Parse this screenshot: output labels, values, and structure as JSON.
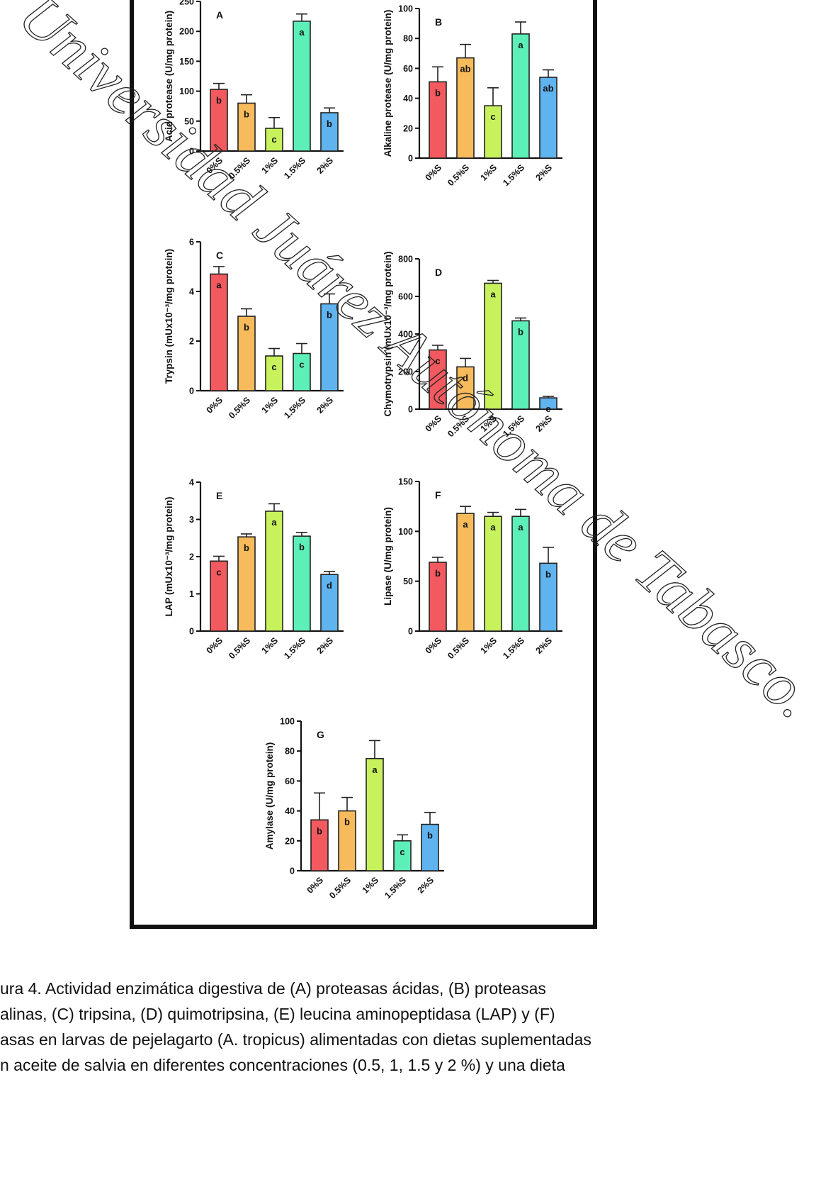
{
  "caption": {
    "lines": [
      "ura 4. Actividad enzimática digestiva de (A) proteasas ácidas, (B) proteasas",
      "alinas, (C) tripsina, (D) quimotripsina, (E) leucina aminopeptidasa (LAP) y (F)",
      "asas en larvas de pejelagarto (A. tropicus) alimentadas con dietas suplementadas",
      "n aceite de salvia en diferentes concentraciones (0.5, 1, 1.5 y 2 %) y una dieta"
    ]
  },
  "watermark": {
    "text": "Universidad Juárez Autónoma de Tabasco."
  },
  "colors": [
    "#f25a5f",
    "#f7bb5c",
    "#c8f25c",
    "#5cf0b8",
    "#5fb4f0"
  ],
  "chart_data": [
    {
      "type": "bar",
      "panel": "A",
      "ylabel": "Acid protease (U/mg protein)",
      "categories": [
        "0%S",
        "0.5%S",
        "1%S",
        "1.5%S",
        "2%S"
      ],
      "values": [
        103,
        80,
        38,
        217,
        64
      ],
      "errors": [
        10,
        14,
        18,
        12,
        8
      ],
      "letters": [
        "b",
        "b",
        "c",
        "a",
        "b"
      ],
      "ylim": [
        0,
        250
      ],
      "yticks": [
        0,
        50,
        100,
        150,
        200,
        250
      ]
    },
    {
      "type": "bar",
      "panel": "B",
      "ylabel": "Alkaline protease (U/mg protein)",
      "categories": [
        "0%S",
        "0.5%S",
        "1%S",
        "1.5%S",
        "2%S"
      ],
      "values": [
        51,
        67,
        35,
        83,
        54
      ],
      "errors": [
        10,
        9,
        12,
        8,
        5
      ],
      "letters": [
        "b",
        "ab",
        "c",
        "a",
        "ab"
      ],
      "ylim": [
        0,
        100
      ],
      "yticks": [
        0,
        20,
        40,
        60,
        80,
        100
      ]
    },
    {
      "type": "bar",
      "panel": "C",
      "ylabel": "Trypsin (mUx10⁻³/mg protein)",
      "categories": [
        "0%S",
        "0.5%S",
        "1%S",
        "1.5%S",
        "2%S"
      ],
      "values": [
        4.7,
        3.0,
        1.4,
        1.5,
        3.5
      ],
      "errors": [
        0.3,
        0.3,
        0.3,
        0.4,
        0.4
      ],
      "letters": [
        "a",
        "b",
        "c",
        "c",
        "b"
      ],
      "ylim": [
        0,
        6
      ],
      "yticks": [
        0,
        2,
        4,
        6
      ]
    },
    {
      "type": "bar",
      "panel": "D",
      "ylabel": "Chymotrypsin (mUx10⁻³/mg protein)",
      "categories": [
        "0%S",
        "0.5%S",
        "1%S",
        "1.5%S",
        "2%S"
      ],
      "values": [
        315,
        225,
        670,
        470,
        60
      ],
      "errors": [
        25,
        45,
        15,
        15,
        8
      ],
      "letters": [
        "c",
        "d",
        "a",
        "b",
        "e"
      ],
      "ylim": [
        0,
        800
      ],
      "yticks": [
        0,
        200,
        400,
        600,
        800
      ]
    },
    {
      "type": "bar",
      "panel": "E",
      "ylabel": "LAP (mUx10⁻³/mg protein)",
      "categories": [
        "0%S",
        "0.5%S",
        "1%S",
        "1.5%S",
        "2%S"
      ],
      "values": [
        1.88,
        2.53,
        3.22,
        2.55,
        1.52
      ],
      "errors": [
        0.13,
        0.08,
        0.2,
        0.1,
        0.08
      ],
      "letters": [
        "c",
        "b",
        "a",
        "b",
        "d"
      ],
      "ylim": [
        0,
        4
      ],
      "yticks": [
        0,
        1,
        2,
        3,
        4
      ]
    },
    {
      "type": "bar",
      "panel": "F",
      "ylabel": "Lipase (U/mg protein)",
      "categories": [
        "0%S",
        "0.5%S",
        "1%S",
        "1.5%S",
        "2%S"
      ],
      "values": [
        69,
        118,
        115,
        115,
        68
      ],
      "errors": [
        5,
        7,
        4,
        7,
        16
      ],
      "letters": [
        "b",
        "a",
        "a",
        "a",
        "b"
      ],
      "ylim": [
        0,
        150
      ],
      "yticks": [
        0,
        50,
        100,
        150
      ]
    },
    {
      "type": "bar",
      "panel": "G",
      "ylabel": "Amylase (U/mg protein)",
      "categories": [
        "0%S",
        "0.5%S",
        "1%S",
        "1.5%S",
        "2%S"
      ],
      "values": [
        34,
        40,
        75,
        20,
        31
      ],
      "errors": [
        18,
        9,
        12,
        4,
        8
      ],
      "letters": [
        "b",
        "b",
        "a",
        "c",
        "b"
      ],
      "ylim": [
        0,
        100
      ],
      "yticks": [
        0,
        20,
        40,
        60,
        80,
        100
      ]
    }
  ]
}
